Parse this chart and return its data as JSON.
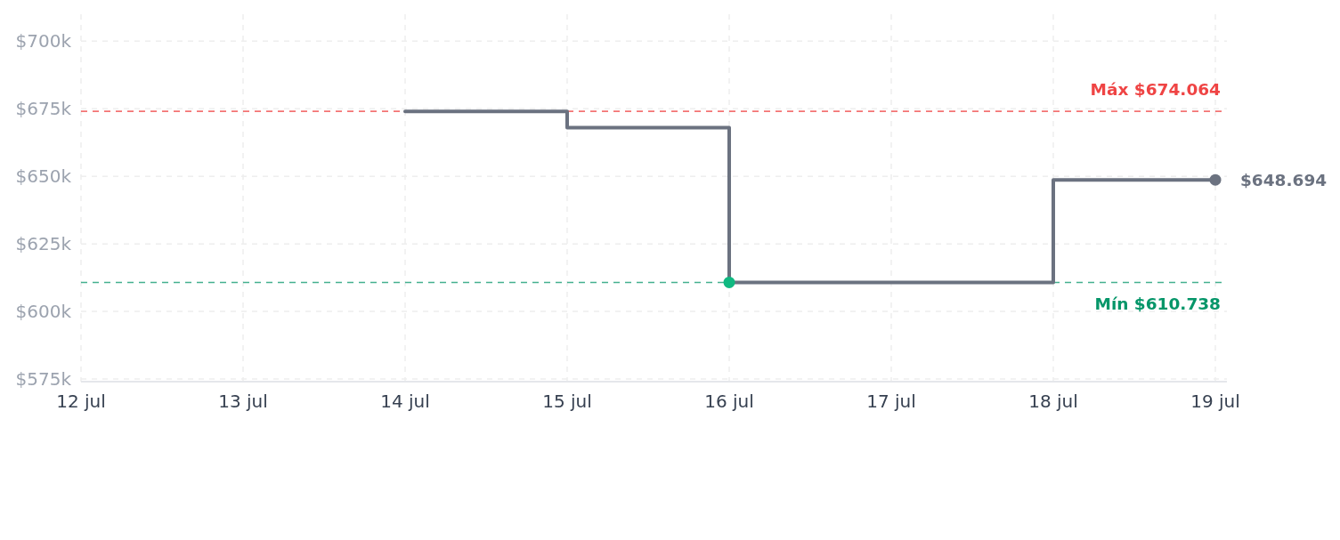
{
  "chart_data": {
    "type": "step",
    "xlim": [
      "--07-12",
      "--07-19"
    ],
    "xticks": [
      {
        "value": "--07-12",
        "label": "12 jul"
      },
      {
        "value": "--07-13",
        "label": "13 jul"
      },
      {
        "value": "--07-14",
        "label": "14 jul"
      },
      {
        "value": "--07-15",
        "label": "15 jul"
      },
      {
        "value": "--07-16",
        "label": "16 jul"
      },
      {
        "value": "--07-17",
        "label": "17 jul"
      },
      {
        "value": "--07-18",
        "label": "18 jul"
      },
      {
        "value": "--07-19",
        "label": "19 jul"
      }
    ],
    "ylim": [
      574000,
      710000
    ],
    "yticks": [
      {
        "value": 575000,
        "label": "$575k"
      },
      {
        "value": 600000,
        "label": "$600k"
      },
      {
        "value": 625000,
        "label": "$625k"
      },
      {
        "value": 650000,
        "label": "$650k"
      },
      {
        "value": 675000,
        "label": "$675k"
      },
      {
        "value": 700000,
        "label": "$700k"
      }
    ],
    "grid": true,
    "series": [
      {
        "x": [
          "--07-14",
          "--07-15",
          "--07-16",
          "--07-18",
          "--07-19"
        ],
        "values": [
          674064,
          668000,
          610738,
          648694,
          648694
        ],
        "color": "#6b7280"
      },
      {
        "type": "scatter",
        "x": [
          "--07-16"
        ],
        "values": [
          610738
        ],
        "color": "#10b981",
        "marker": "circle"
      },
      {
        "type": "scatter",
        "x": [
          "--07-19"
        ],
        "values": [
          648694
        ],
        "color": "#6b7280",
        "marker": "circle",
        "value_labels": [
          "$648.694"
        ]
      }
    ],
    "ref_lines": [
      {
        "axis": "y",
        "value": 674064,
        "label": "Máx $674.064",
        "color": "#ef4444",
        "line_style": "dashed"
      },
      {
        "axis": "y",
        "value": 610738,
        "label": "Mín $610.738",
        "color": "#059669",
        "line_style": "dashed"
      }
    ]
  }
}
